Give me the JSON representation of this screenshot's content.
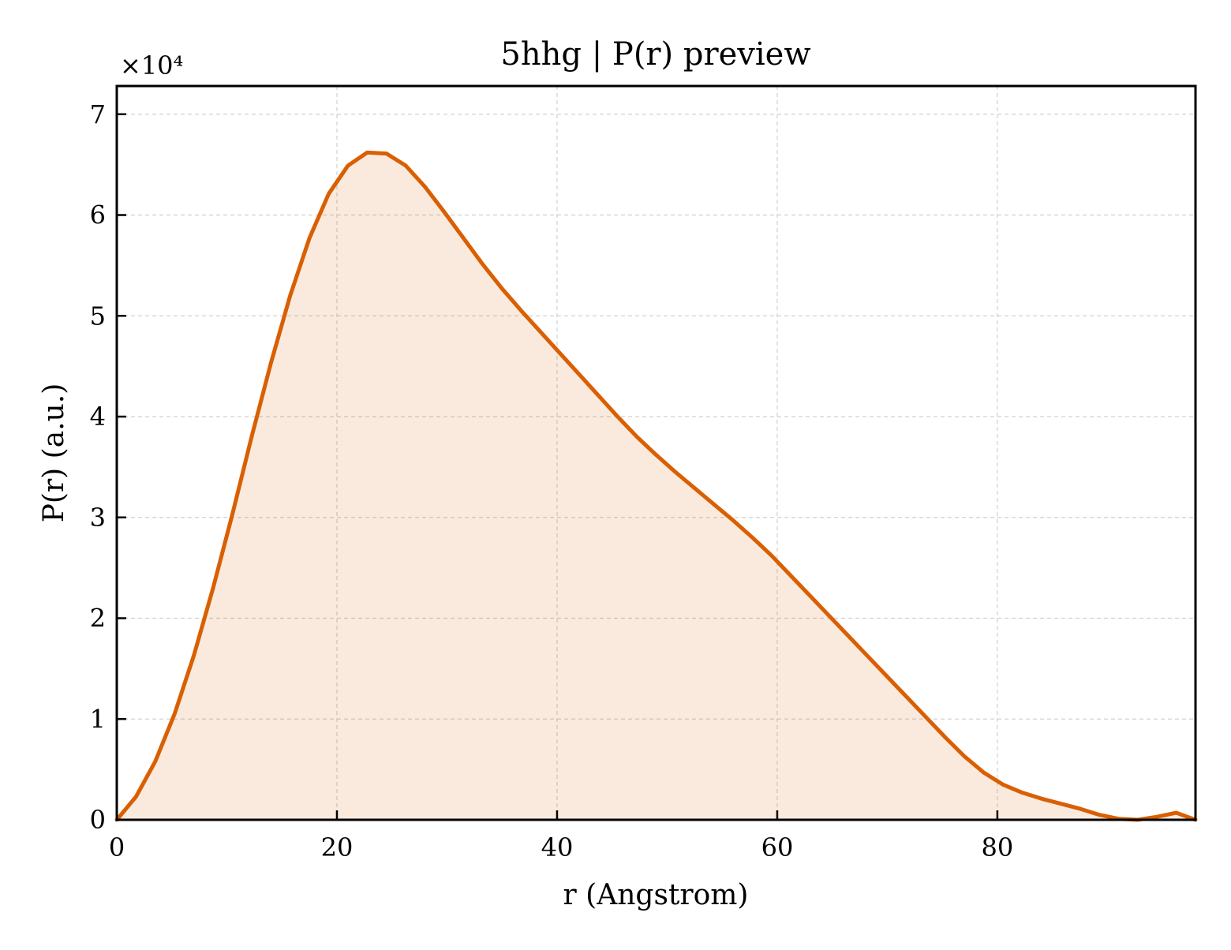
{
  "chart_data": {
    "type": "area",
    "title": "5hhg | P(r) preview",
    "xlabel": "r (Angstrom)",
    "ylabel": "P(r) (a.u.)",
    "y_multiplier_label": "×10⁴",
    "y_scale_factor": 10000,
    "xlim": [
      0,
      98
    ],
    "ylim": [
      0,
      72800
    ],
    "grid": true,
    "x_ticks": [
      0,
      20,
      40,
      60,
      80
    ],
    "x_tick_labels": [
      "0",
      "20",
      "40",
      "60",
      "80"
    ],
    "y_ticks": [
      0,
      10000,
      20000,
      30000,
      40000,
      50000,
      60000,
      70000
    ],
    "y_tick_labels": [
      "0",
      "1",
      "2",
      "3",
      "4",
      "5",
      "6",
      "7"
    ],
    "series": [
      {
        "color": "#d95f02",
        "fill_color": "#d95f02",
        "fill_opacity": 0.13,
        "x": [
          0,
          1.75,
          3.5,
          5.25,
          7.0,
          8.75,
          10.5,
          12.25,
          14.0,
          15.75,
          17.5,
          19.25,
          21.0,
          22.75,
          24.5,
          26.25,
          28.0,
          29.75,
          31.5,
          33.25,
          35.0,
          36.75,
          38.5,
          40.25,
          42.0,
          43.75,
          45.5,
          47.25,
          49.0,
          50.75,
          52.5,
          54.25,
          56.0,
          57.75,
          59.5,
          61.25,
          63.0,
          64.75,
          66.5,
          68.25,
          70.0,
          71.75,
          73.5,
          75.25,
          77.0,
          78.75,
          80.5,
          82.25,
          84.0,
          85.75,
          87.5,
          89.25,
          91.0,
          92.75,
          94.5,
          96.25,
          98.0
        ],
        "y": [
          0,
          2300,
          5800,
          10500,
          16300,
          23000,
          30300,
          38000,
          45300,
          52000,
          57700,
          62100,
          64900,
          66200,
          66100,
          64900,
          62800,
          60300,
          57700,
          55100,
          52700,
          50500,
          48400,
          46300,
          44200,
          42100,
          40000,
          38000,
          36200,
          34500,
          32900,
          31300,
          29700,
          28000,
          26200,
          24200,
          22200,
          20200,
          18200,
          16200,
          14200,
          12200,
          10200,
          8200,
          6300,
          4700,
          3500,
          2700,
          2100,
          1600,
          1100,
          500,
          100,
          0,
          300,
          700,
          0
        ]
      }
    ]
  }
}
